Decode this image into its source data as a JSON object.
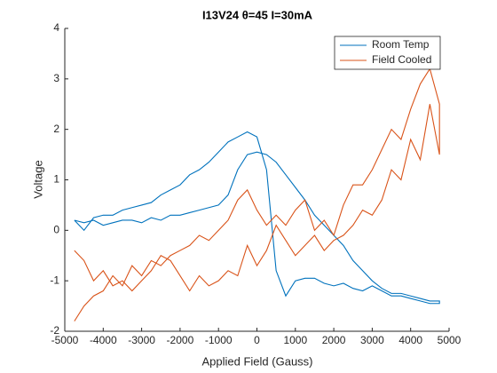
{
  "chart_data": {
    "type": "line",
    "title": "I13V24 θ=45 I=30mA",
    "x_label": "Applied Field (Gauss)",
    "y_label": "Voltage",
    "x": [
      -4750,
      -4500,
      -4250,
      -4000,
      -3750,
      -3500,
      -3250,
      -3000,
      -2750,
      -2500,
      -2250,
      -2000,
      -1750,
      -1500,
      -1250,
      -1000,
      -750,
      -500,
      -250,
      0,
      250,
      500,
      750,
      1000,
      1250,
      1500,
      1750,
      2000,
      2250,
      2500,
      2750,
      3000,
      3250,
      3500,
      3750,
      4000,
      4250,
      4500,
      4750,
      4750,
      4500,
      4250,
      4000,
      3750,
      3500,
      3250,
      3000,
      2750,
      2500,
      2250,
      2000,
      1750,
      1500,
      1250,
      1000,
      750,
      500,
      250,
      0,
      -250,
      -500,
      -750,
      -1000,
      -1250,
      -1500,
      -1750,
      -2000,
      -2250,
      -2500,
      -2750,
      -3000,
      -3250,
      -3500,
      -3750,
      -4000,
      -4250,
      -4500,
      -4750
    ],
    "series": [
      {
        "name": "Room Temp",
        "color": "#0072BD",
        "values": [
          0.2,
          0.0,
          0.25,
          0.3,
          0.3,
          0.4,
          0.45,
          0.5,
          0.55,
          0.7,
          0.8,
          0.9,
          1.1,
          1.2,
          1.35,
          1.55,
          1.75,
          1.85,
          1.95,
          1.85,
          1.2,
          -0.8,
          -1.3,
          -1.0,
          -0.95,
          -0.95,
          -1.05,
          -1.1,
          -1.05,
          -1.15,
          -1.2,
          -1.1,
          -1.2,
          -1.3,
          -1.3,
          -1.35,
          -1.4,
          -1.45,
          -1.45,
          -1.4,
          -1.4,
          -1.35,
          -1.3,
          -1.25,
          -1.25,
          -1.15,
          -1.0,
          -0.8,
          -0.6,
          -0.3,
          -0.1,
          0.1,
          0.3,
          0.6,
          0.85,
          1.1,
          1.35,
          1.5,
          1.55,
          1.5,
          1.2,
          0.7,
          0.5,
          0.45,
          0.4,
          0.35,
          0.3,
          0.3,
          0.2,
          0.25,
          0.15,
          0.2,
          0.2,
          0.15,
          0.1,
          0.2,
          0.15,
          0.2
        ]
      },
      {
        "name": "Field Cooled",
        "color": "#D95319",
        "values": [
          -1.8,
          -1.5,
          -1.3,
          -1.2,
          -0.9,
          -1.1,
          -0.7,
          -0.9,
          -0.6,
          -0.7,
          -0.5,
          -0.4,
          -0.3,
          -0.1,
          -0.2,
          0.0,
          0.2,
          0.6,
          0.8,
          0.4,
          0.1,
          0.3,
          0.1,
          0.4,
          0.6,
          0.0,
          0.2,
          -0.1,
          0.5,
          0.9,
          0.9,
          1.2,
          1.6,
          2.0,
          1.8,
          2.4,
          2.9,
          3.2,
          2.5,
          1.5,
          2.5,
          1.4,
          1.8,
          1.0,
          1.2,
          0.6,
          0.3,
          0.4,
          0.1,
          -0.1,
          -0.2,
          -0.4,
          -0.1,
          -0.3,
          -0.5,
          -0.2,
          0.1,
          -0.4,
          -0.7,
          -0.3,
          -0.9,
          -0.8,
          -1.0,
          -1.1,
          -0.9,
          -1.2,
          -0.9,
          -0.6,
          -0.5,
          -0.8,
          -1.0,
          -1.2,
          -1.0,
          -1.1,
          -0.8,
          -1.0,
          -0.6,
          -0.4
        ]
      }
    ],
    "xlim": [
      -5000,
      5000
    ],
    "xticks": [
      -5000,
      -4000,
      -3000,
      -2000,
      -1000,
      0,
      1000,
      2000,
      3000,
      4000,
      5000
    ],
    "ylim": [
      -2,
      4
    ],
    "yticks": [
      -2,
      -1,
      0,
      1,
      2,
      3,
      4
    ],
    "grid": false,
    "legend": "northeast"
  }
}
